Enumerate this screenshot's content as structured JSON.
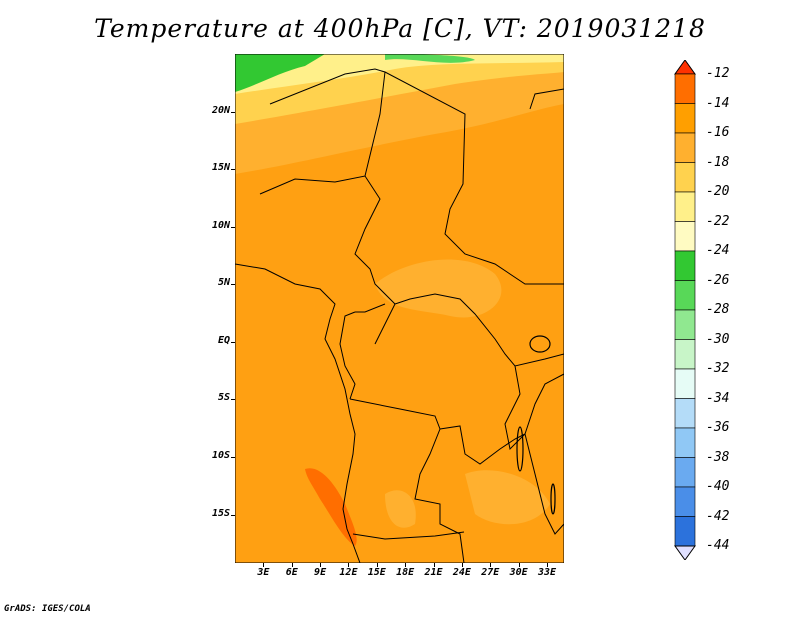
{
  "title": "Temperature at 400hPa [C], VT: 2019031218",
  "footer": "GrADS: IGES/COLA",
  "map": {
    "lat_labels": [
      "20N",
      "15N",
      "10N",
      "5N",
      "EQ",
      "5S",
      "10S",
      "15S"
    ],
    "lat_values": [
      20,
      15,
      10,
      5,
      0,
      -5,
      -10,
      -15
    ],
    "lon_labels": [
      "3E",
      "6E",
      "9E",
      "12E",
      "15E",
      "18E",
      "21E",
      "24E",
      "27E",
      "30E",
      "33E"
    ],
    "lon_values": [
      3,
      6,
      9,
      12,
      15,
      18,
      21,
      24,
      27,
      30,
      33
    ],
    "lat_range": [
      -19.2,
      25
    ],
    "lon_range": [
      0,
      34.8
    ]
  },
  "colorbar": {
    "labels": [
      "-12",
      "-14",
      "-16",
      "-18",
      "-20",
      "-22",
      "-24",
      "-26",
      "-28",
      "-30",
      "-32",
      "-34",
      "-36",
      "-38",
      "-40",
      "-42",
      "-44"
    ],
    "colors": [
      "#ff3200",
      "#ff6e00",
      "#ff9f00",
      "#ffb02f",
      "#ffd24e",
      "#fff08a",
      "#fffbc2",
      "#32c832",
      "#58d858",
      "#90e890",
      "#c8f5c8",
      "#e6fcf6",
      "#b4dcf8",
      "#90c8f5",
      "#6aaaf0",
      "#4a8ee8",
      "#2c72dc",
      "#1450c8",
      "#0a32a0",
      "#100a78",
      "#e0e0ff"
    ]
  }
}
